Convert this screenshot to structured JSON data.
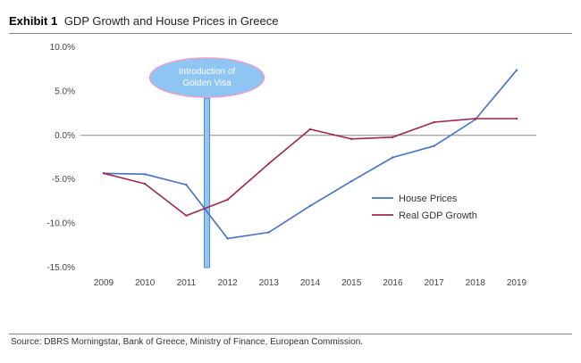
{
  "header": {
    "exhibit": "Exhibit 1",
    "title": "GDP Growth and House Prices in Greece"
  },
  "source": "Source: DBRS Morningstar, Bank of Greece, Ministry of Finance, European Commission.",
  "colors": {
    "house_prices": "#4472c4",
    "real_gdp": "#a0264f",
    "annotation_fill": "#8ec5f2",
    "annotation_border": "#e8a0c8"
  },
  "chart_data": {
    "type": "line",
    "title": "GDP Growth and House Prices in Greece",
    "xlabel": "",
    "ylabel": "",
    "categories": [
      "2009",
      "2010",
      "2011",
      "2012",
      "2013",
      "2014",
      "2015",
      "2016",
      "2017",
      "2018",
      "2019"
    ],
    "ylim": [
      -15,
      10
    ],
    "yticks": [
      10,
      5,
      0,
      -5,
      -10,
      -15
    ],
    "ytick_labels": [
      "10.0%",
      "5.0%",
      "0.0%",
      "-5.0%",
      "-10.0%",
      "-15.0%"
    ],
    "series": [
      {
        "name": "House Prices",
        "values": [
          -4.3,
          -4.4,
          -5.6,
          -11.7,
          -11.0,
          -8.0,
          -5.2,
          -2.5,
          -1.2,
          1.8,
          7.4
        ]
      },
      {
        "name": "Real GDP Growth",
        "values": [
          -4.3,
          -5.5,
          -9.1,
          -7.3,
          -3.2,
          0.7,
          -0.4,
          -0.2,
          1.5,
          1.9,
          1.9
        ]
      }
    ],
    "annotation": {
      "text_line1": "Introduction of",
      "text_line2": "Golden Visa",
      "x_value": 2011.5
    },
    "legend_position": "center-right"
  }
}
